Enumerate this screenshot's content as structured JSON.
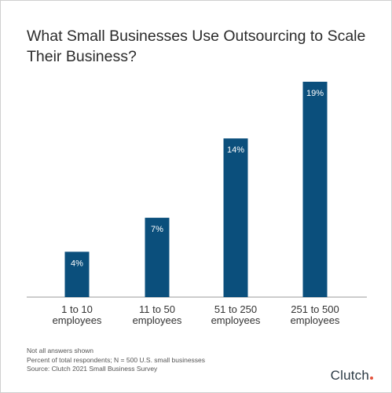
{
  "title": "What Small Businesses Use Outsourcing to Scale Their Business?",
  "colors": {
    "bar": "#0b4f7c",
    "axis": "#999999",
    "logo_dot": "#e5533d"
  },
  "chart_data": {
    "type": "bar",
    "title": "What Small Businesses Use Outsourcing to Scale Their Business?",
    "categories": [
      [
        "1 to 10",
        "employees"
      ],
      [
        "11 to 50",
        "employees"
      ],
      [
        "51 to 250",
        "employees"
      ],
      [
        "251 to 500",
        "employees"
      ]
    ],
    "values": [
      4,
      7,
      14,
      19
    ],
    "value_labels": [
      "4%",
      "7%",
      "14%",
      "19%"
    ],
    "unit": "%",
    "ylim": [
      0,
      20
    ],
    "grid": false
  },
  "notes": [
    "Not all answers shown",
    "Percent of total respondents; N = 500 U.S. small businesses",
    "Source: Clutch 2021 Small Business Survey"
  ],
  "logo": {
    "text": "Clutch",
    "icon": "clutch-logo"
  }
}
